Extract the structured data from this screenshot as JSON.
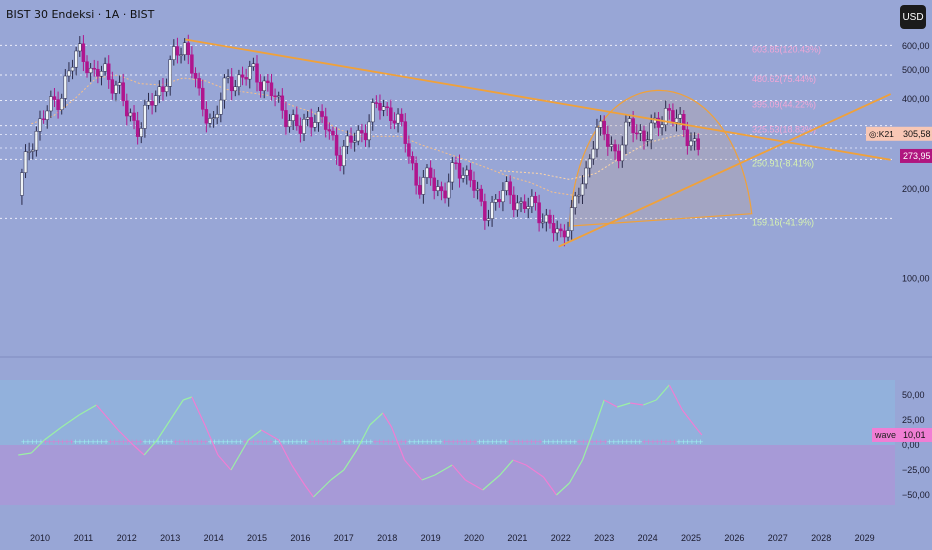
{
  "header": {
    "title": "BIST 30 Endeksi · 1A · BIST",
    "currency_button": "USD"
  },
  "colors": {
    "background": "#98a6d6",
    "indicator_bg_top": "#92b1dc",
    "indicator_bg_bottom": "#a79ad7",
    "bull_candle": "#eef3f6",
    "bear_candle": "#b0158d",
    "trendline": "#f0a13a",
    "fib_label": "#f1a7d7",
    "fib_label_low": "#d7f3b0",
    "wave_green": "#9bf0a5",
    "wave_pink": "#f07ed4",
    "price_badge": "#b0157f",
    "k21_badge": "#f8c7b5"
  },
  "badges": {
    "k21_label": "◎:K21",
    "k21_value": "305,58",
    "last_price": "273,95",
    "wave_label": "wave",
    "wave_value": "10,01"
  },
  "chart_data": [
    {
      "type": "candlestick",
      "title": "BIST 30 Endeksi · 1A · BIST",
      "currency": "USD",
      "xlim": [
        2009.5,
        2030.0
      ],
      "ylim": [
        60,
        680
      ],
      "y_ticks": [
        100,
        200,
        300,
        400,
        500,
        600
      ],
      "y_tick_labels": [
        "100,00",
        "200,00",
        "300,00",
        "400,00",
        "500,00",
        "600,00"
      ],
      "x_ticks": [
        2010,
        2011,
        2012,
        2013,
        2014,
        2015,
        2016,
        2017,
        2018,
        2019,
        2020,
        2021,
        2022,
        2023,
        2024,
        2025,
        2026,
        2027,
        2028,
        2029
      ],
      "x_tick_labels": [
        "2010",
        "2011",
        "2012",
        "2013",
        "2014",
        "2015",
        "2016",
        "2017",
        "2018",
        "2019",
        "2020",
        "2021",
        "2022",
        "2023",
        "2024",
        "2025",
        "2026",
        "2027",
        "2028",
        "2029"
      ],
      "close_path": [
        [
          2009.5,
          190
        ],
        [
          2009.8,
          290
        ],
        [
          2010.2,
          370
        ],
        [
          2010.5,
          420
        ],
        [
          2010.8,
          540
        ],
        [
          2010.95,
          600
        ],
        [
          2011.2,
          470
        ],
        [
          2011.5,
          500
        ],
        [
          2011.8,
          430
        ],
        [
          2012.0,
          360
        ],
        [
          2012.3,
          320
        ],
        [
          2012.6,
          400
        ],
        [
          2012.9,
          460
        ],
        [
          2013.1,
          560
        ],
        [
          2013.35,
          610
        ],
        [
          2013.5,
          520
        ],
        [
          2013.7,
          370
        ],
        [
          2014.0,
          340
        ],
        [
          2014.3,
          450
        ],
        [
          2014.6,
          470
        ],
        [
          2014.9,
          490
        ],
        [
          2015.2,
          450
        ],
        [
          2015.5,
          380
        ],
        [
          2015.8,
          340
        ],
        [
          2016.0,
          310
        ],
        [
          2016.3,
          360
        ],
        [
          2016.6,
          320
        ],
        [
          2016.9,
          260
        ],
        [
          2017.2,
          290
        ],
        [
          2017.5,
          320
        ],
        [
          2017.8,
          385
        ],
        [
          2018.1,
          360
        ],
        [
          2018.4,
          300
        ],
        [
          2018.7,
          200
        ],
        [
          2019.0,
          220
        ],
        [
          2019.3,
          190
        ],
        [
          2019.6,
          240
        ],
        [
          2019.9,
          220
        ],
        [
          2020.2,
          165
        ],
        [
          2020.5,
          180
        ],
        [
          2020.8,
          200
        ],
        [
          2021.1,
          170
        ],
        [
          2021.4,
          180
        ],
        [
          2021.7,
          150
        ],
        [
          2022.0,
          140
        ],
        [
          2022.3,
          170
        ],
        [
          2022.6,
          230
        ],
        [
          2022.8,
          320
        ],
        [
          2023.0,
          300
        ],
        [
          2023.3,
          260
        ],
        [
          2023.6,
          330
        ],
        [
          2023.9,
          300
        ],
        [
          2024.2,
          320
        ],
        [
          2024.45,
          375
        ],
        [
          2024.7,
          330
        ],
        [
          2024.95,
          300
        ],
        [
          2025.2,
          274
        ]
      ],
      "moving_averages": [
        {
          "name": "",
          "color": "#f8c08a",
          "path": [
            [
              2009.8,
              330
            ],
            [
              2010.3,
              350
            ],
            [
              2010.8,
              400
            ],
            [
              2011.3,
              470
            ],
            [
              2011.8,
              480
            ],
            [
              2012.3,
              450
            ],
            [
              2012.8,
              445
            ],
            [
              2013.3,
              470
            ],
            [
              2013.8,
              460
            ],
            [
              2014.3,
              430
            ],
            [
              2014.8,
              420
            ],
            [
              2015.3,
              410
            ],
            [
              2015.8,
              380
            ],
            [
              2016.3,
              360
            ],
            [
              2016.8,
              320
            ],
            [
              2017.3,
              300
            ],
            [
              2017.8,
              300
            ],
            [
              2018.3,
              300
            ],
            [
              2018.8,
              280
            ],
            [
              2019.3,
              265
            ],
            [
              2019.8,
              250
            ],
            [
              2020.3,
              235
            ],
            [
              2020.8,
              220
            ],
            [
              2021.3,
              210
            ],
            [
              2021.8,
              195
            ],
            [
              2022.3,
              190
            ]
          ]
        },
        {
          "name": "",
          "color": "#ffd6a6",
          "path": [
            [
              2020.6,
              230
            ],
            [
              2021.5,
              225
            ],
            [
              2022.2,
              215
            ],
            [
              2022.8,
              225
            ],
            [
              2023.4,
              255
            ],
            [
              2024.0,
              285
            ],
            [
              2024.6,
              300
            ],
            [
              2025.2,
              306
            ]
          ]
        }
      ],
      "trendlines": [
        {
          "name": "",
          "color": "#f0a13a",
          "points": [
            [
              2013.35,
              632
            ],
            [
              2029.6,
              250
            ]
          ]
        },
        {
          "name": "",
          "color": "#f0a13a",
          "points": [
            [
              2021.95,
              128
            ],
            [
              2029.6,
              415
            ]
          ]
        }
      ],
      "arc": {
        "color": "#f0a13a",
        "from": [
          2022.2,
          150
        ],
        "peak": [
          2024.5,
          375
        ],
        "to": [
          2026.4,
          165
        ]
      },
      "fib_levels": [
        {
          "value": 603.85,
          "label": "603.85(120.43%)"
        },
        {
          "value": 480.62,
          "label": "480.62(75.44%)"
        },
        {
          "value": 395.09,
          "label": "395.09(44.22%)"
        },
        {
          "value": 325.53,
          "label": "325.53(18.83%)"
        },
        {
          "value": 250.91,
          "label": "250.91(-8.41%)"
        },
        {
          "value": 159.16,
          "label": "159.16(-41.9%)"
        }
      ],
      "extra_lines": [
        273.95,
        304
      ]
    },
    {
      "type": "line",
      "xlim": [
        2009.5,
        2030.0
      ],
      "ylim": [
        -60,
        65
      ],
      "y_ticks": [
        50,
        25,
        0,
        -25,
        -50
      ],
      "y_tick_labels": [
        "50,00",
        "25,00",
        "0,00",
        "−25,00",
        "−50,00"
      ],
      "series": [
        {
          "name": "wave",
          "last_value": 10.01,
          "points": [
            [
              2009.5,
              -10
            ],
            [
              2009.8,
              -8
            ],
            [
              2010.1,
              5
            ],
            [
              2010.5,
              18
            ],
            [
              2010.9,
              30
            ],
            [
              2011.3,
              40
            ],
            [
              2011.5,
              30
            ],
            [
              2011.8,
              15
            ],
            [
              2012.1,
              2
            ],
            [
              2012.4,
              -10
            ],
            [
              2012.7,
              5
            ],
            [
              2013.0,
              25
            ],
            [
              2013.3,
              45
            ],
            [
              2013.5,
              48
            ],
            [
              2013.8,
              20
            ],
            [
              2014.1,
              -10
            ],
            [
              2014.4,
              -25
            ],
            [
              2014.8,
              5
            ],
            [
              2015.1,
              15
            ],
            [
              2015.5,
              5
            ],
            [
              2015.8,
              -20
            ],
            [
              2016.1,
              -40
            ],
            [
              2016.3,
              -52
            ],
            [
              2016.7,
              -35
            ],
            [
              2017.0,
              -25
            ],
            [
              2017.3,
              -5
            ],
            [
              2017.6,
              20
            ],
            [
              2017.9,
              32
            ],
            [
              2018.1,
              18
            ],
            [
              2018.4,
              -15
            ],
            [
              2018.8,
              -35
            ],
            [
              2019.1,
              -30
            ],
            [
              2019.5,
              -20
            ],
            [
              2019.8,
              -35
            ],
            [
              2020.2,
              -45
            ],
            [
              2020.6,
              -30
            ],
            [
              2020.9,
              -15
            ],
            [
              2021.2,
              -20
            ],
            [
              2021.6,
              -32
            ],
            [
              2021.9,
              -50
            ],
            [
              2022.2,
              -38
            ],
            [
              2022.5,
              -15
            ],
            [
              2022.8,
              20
            ],
            [
              2023.0,
              45
            ],
            [
              2023.3,
              38
            ],
            [
              2023.6,
              42
            ],
            [
              2023.9,
              40
            ],
            [
              2024.2,
              45
            ],
            [
              2024.5,
              60
            ],
            [
              2024.8,
              35
            ],
            [
              2025.1,
              18
            ],
            [
              2025.25,
              10
            ]
          ]
        }
      ]
    }
  ]
}
